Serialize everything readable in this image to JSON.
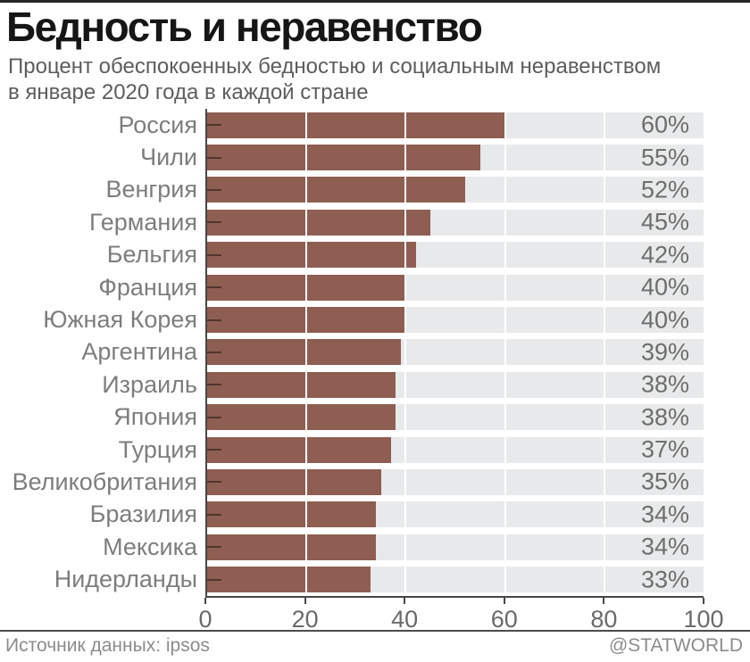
{
  "header": {
    "title": "Бедность и неравенство",
    "subtitle_lines": [
      "Процент обеспокоенных бедностью и социальным неравенством",
      "в январе 2020 года в каждой стране"
    ]
  },
  "chart_data": {
    "type": "bar",
    "orientation": "horizontal",
    "title": "Бедность и неравенство",
    "subtitle": "Процент обеспокоенных бедностью и социальным неравенством в январе 2020 года в каждой стране",
    "categories": [
      "Россия",
      "Чили",
      "Венгрия",
      "Германия",
      "Бельгия",
      "Франция",
      "Южная Корея",
      "Аргентина",
      "Израиль",
      "Япония",
      "Турция",
      "Великобритания",
      "Бразилия",
      "Мексика",
      "Нидерланды"
    ],
    "values": [
      60,
      55,
      52,
      45,
      42,
      40,
      40,
      39,
      38,
      38,
      37,
      35,
      34,
      34,
      33
    ],
    "unit": "%",
    "value_labels": [
      "60%",
      "55%",
      "52%",
      "45%",
      "42%",
      "40%",
      "40%",
      "39%",
      "38%",
      "38%",
      "37%",
      "35%",
      "34%",
      "34%",
      "33%"
    ],
    "xlim": [
      0,
      100
    ],
    "x_ticks": [
      0,
      20,
      40,
      60,
      80,
      100
    ],
    "grid": "white vertical gridlines at x ticks, over bars and tracks",
    "legend": "none",
    "bar_color": "#8d5e51",
    "track_color": "#e8e9ea",
    "label_color": "#7d7d7d",
    "axis_color": "#474747"
  },
  "footer": {
    "source": "Источник данных: ipsos",
    "handle": "@STATWORLD"
  }
}
